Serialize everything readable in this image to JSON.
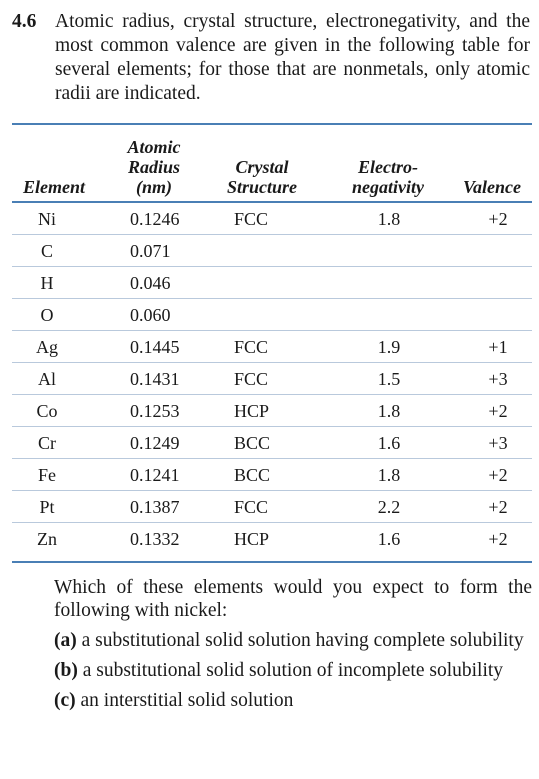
{
  "problem": {
    "number": "4.6",
    "intro": "Atomic radius, crystal structure, electronegativity, and the most common valence are given in the following table for several elements; for those that are nonmetals, only atomic radii are indicated."
  },
  "table": {
    "headers": {
      "element": "Element",
      "radius_line1": "Atomic",
      "radius_line2": "Radius",
      "radius_line3": "(nm)",
      "structure_line1": "Crystal",
      "structure_line2": "Structure",
      "en_line1": "Electro-",
      "en_line2": "negativity",
      "valence": "Valence"
    },
    "rows": [
      {
        "element": "Ni",
        "radius": "0.1246",
        "structure": "FCC",
        "en": "1.8",
        "valence": "+2"
      },
      {
        "element": "C",
        "radius": "0.071",
        "structure": "",
        "en": "",
        "valence": ""
      },
      {
        "element": "H",
        "radius": "0.046",
        "structure": "",
        "en": "",
        "valence": ""
      },
      {
        "element": "O",
        "radius": "0.060",
        "structure": "",
        "en": "",
        "valence": ""
      },
      {
        "element": "Ag",
        "radius": "0.1445",
        "structure": "FCC",
        "en": "1.9",
        "valence": "+1"
      },
      {
        "element": "Al",
        "radius": "0.1431",
        "structure": "FCC",
        "en": "1.5",
        "valence": "+3"
      },
      {
        "element": "Co",
        "radius": "0.1253",
        "structure": "HCP",
        "en": "1.8",
        "valence": "+2"
      },
      {
        "element": "Cr",
        "radius": "0.1249",
        "structure": "BCC",
        "en": "1.6",
        "valence": "+3"
      },
      {
        "element": "Fe",
        "radius": "0.1241",
        "structure": "BCC",
        "en": "1.8",
        "valence": "+2"
      },
      {
        "element": "Pt",
        "radius": "0.1387",
        "structure": "FCC",
        "en": "2.2",
        "valence": "+2"
      },
      {
        "element": "Zn",
        "radius": "0.1332",
        "structure": "HCP",
        "en": "1.6",
        "valence": "+2"
      }
    ]
  },
  "question": {
    "stem": "Which of these elements would you expect to form the following with nickel:",
    "parts": [
      {
        "label": "(a)",
        "text": "a substitutional solid solution having complete solubility"
      },
      {
        "label": "(b)",
        "text": "a substitutional solid solution of incomplete solubility"
      },
      {
        "label": "(c)",
        "text": "an interstitial solid solution"
      }
    ]
  }
}
